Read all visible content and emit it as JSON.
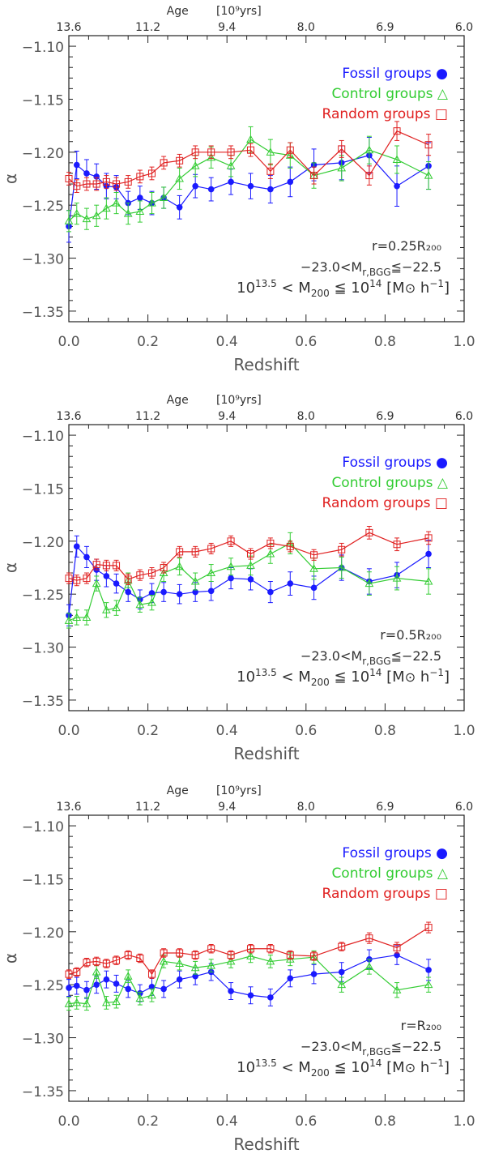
{
  "figure": {
    "x_label": "Redshift",
    "y_label": "α",
    "top_axis_label": "Age",
    "top_axis_unit": "[10⁹yrs]",
    "x_ticks": [
      "0.0",
      "0.2",
      "0.4",
      "0.6",
      "0.8",
      "1.0"
    ],
    "y_ticks": [
      "−1.10",
      "−1.15",
      "−1.20",
      "−1.25",
      "−1.30",
      "−1.35"
    ],
    "top_ticks": [
      "13.6",
      "11.2",
      "9.4",
      "8.0",
      "6.9",
      "6.0"
    ],
    "colors": {
      "fossil": "#1a1aff",
      "control": "#33cc33",
      "random": "#e02020",
      "axis": "#222222"
    }
  },
  "chart_data": [
    {
      "type": "line",
      "panel_label": "r=0.25R₂₀₀",
      "mag_text": "−23.0<M",
      "mag_sub": "r,BGG",
      "mag_tail": "≦−22.5",
      "mass_text": "10^13.5 < M200 ≦ 10^14 [M⊙ h−1]",
      "xlim": [
        0.0,
        1.0
      ],
      "ylim": [
        -1.36,
        -1.09
      ],
      "series": [
        {
          "name": "Fossil groups",
          "key": "fossil",
          "symbol": "●",
          "x": [
            0.0,
            0.02,
            0.045,
            0.07,
            0.095,
            0.12,
            0.15,
            0.18,
            0.21,
            0.24,
            0.28,
            0.32,
            0.36,
            0.41,
            0.46,
            0.51,
            0.56,
            0.62,
            0.69,
            0.76,
            0.83,
            0.91
          ],
          "y": [
            -1.27,
            -1.212,
            -1.22,
            -1.223,
            -1.232,
            -1.233,
            -1.248,
            -1.243,
            -1.248,
            -1.243,
            -1.252,
            -1.232,
            -1.235,
            -1.228,
            -1.232,
            -1.235,
            -1.228,
            -1.212,
            -1.21,
            -1.203,
            -1.232,
            -1.213
          ],
          "err": [
            0.015,
            0.013,
            0.013,
            0.012,
            0.012,
            0.011,
            0.011,
            0.011,
            0.011,
            0.01,
            0.011,
            0.011,
            0.011,
            0.012,
            0.012,
            0.013,
            0.014,
            0.015,
            0.016,
            0.017,
            0.019,
            0.022
          ]
        },
        {
          "name": "Control groups",
          "key": "control",
          "symbol": "△",
          "x": [
            0.0,
            0.02,
            0.045,
            0.07,
            0.095,
            0.12,
            0.15,
            0.18,
            0.21,
            0.24,
            0.28,
            0.32,
            0.36,
            0.41,
            0.46,
            0.51,
            0.56,
            0.62,
            0.69,
            0.76,
            0.83,
            0.91
          ],
          "y": [
            -1.265,
            -1.258,
            -1.263,
            -1.26,
            -1.253,
            -1.248,
            -1.258,
            -1.256,
            -1.248,
            -1.243,
            -1.225,
            -1.213,
            -1.205,
            -1.213,
            -1.188,
            -1.2,
            -1.203,
            -1.222,
            -1.215,
            -1.198,
            -1.207,
            -1.222
          ],
          "err": [
            0.01,
            0.01,
            0.01,
            0.01,
            0.01,
            0.01,
            0.01,
            0.01,
            0.01,
            0.01,
            0.01,
            0.01,
            0.01,
            0.01,
            0.012,
            0.012,
            0.012,
            0.012,
            0.012,
            0.013,
            0.013,
            0.013
          ]
        },
        {
          "name": "Random groups",
          "key": "random",
          "symbol": "□",
          "x": [
            0.0,
            0.02,
            0.045,
            0.07,
            0.095,
            0.12,
            0.15,
            0.18,
            0.21,
            0.24,
            0.28,
            0.32,
            0.36,
            0.41,
            0.46,
            0.51,
            0.56,
            0.62,
            0.69,
            0.76,
            0.83,
            0.91
          ],
          "y": [
            -1.225,
            -1.232,
            -1.23,
            -1.23,
            -1.228,
            -1.23,
            -1.228,
            -1.223,
            -1.22,
            -1.21,
            -1.208,
            -1.2,
            -1.2,
            -1.2,
            -1.198,
            -1.218,
            -1.198,
            -1.222,
            -1.197,
            -1.222,
            -1.18,
            -1.193
          ],
          "err": [
            0.006,
            0.006,
            0.006,
            0.006,
            0.006,
            0.006,
            0.006,
            0.006,
            0.006,
            0.006,
            0.006,
            0.006,
            0.006,
            0.006,
            0.006,
            0.007,
            0.007,
            0.008,
            0.008,
            0.009,
            0.009,
            0.01
          ]
        }
      ]
    },
    {
      "type": "line",
      "panel_label": "r=0.5R₂₀₀",
      "mag_text": "−23.0<M",
      "mag_sub": "r,BGG",
      "mag_tail": "≦−22.5",
      "mass_text": "10^13.5 < M200 ≦ 10^14 [M⊙ h−1]",
      "xlim": [
        0.0,
        1.0
      ],
      "ylim": [
        -1.36,
        -1.09
      ],
      "series": [
        {
          "name": "Fossil groups",
          "key": "fossil",
          "symbol": "●",
          "x": [
            0.0,
            0.02,
            0.045,
            0.07,
            0.095,
            0.12,
            0.15,
            0.18,
            0.21,
            0.24,
            0.28,
            0.32,
            0.36,
            0.41,
            0.46,
            0.51,
            0.56,
            0.62,
            0.69,
            0.76,
            0.83,
            0.91
          ],
          "y": [
            -1.27,
            -1.205,
            -1.215,
            -1.227,
            -1.233,
            -1.24,
            -1.248,
            -1.255,
            -1.249,
            -1.248,
            -1.25,
            -1.248,
            -1.247,
            -1.235,
            -1.236,
            -1.248,
            -1.24,
            -1.244,
            -1.225,
            -1.238,
            -1.232,
            -1.212
          ],
          "err": [
            0.01,
            0.01,
            0.01,
            0.01,
            0.01,
            0.009,
            0.009,
            0.009,
            0.009,
            0.009,
            0.009,
            0.009,
            0.009,
            0.01,
            0.01,
            0.01,
            0.011,
            0.011,
            0.012,
            0.012,
            0.012,
            0.013
          ]
        },
        {
          "name": "Control groups",
          "key": "control",
          "symbol": "△",
          "x": [
            0.0,
            0.02,
            0.045,
            0.07,
            0.095,
            0.12,
            0.15,
            0.18,
            0.21,
            0.24,
            0.28,
            0.32,
            0.36,
            0.41,
            0.46,
            0.51,
            0.56,
            0.62,
            0.69,
            0.76,
            0.83,
            0.91
          ],
          "y": [
            -1.275,
            -1.272,
            -1.272,
            -1.24,
            -1.265,
            -1.263,
            -1.237,
            -1.26,
            -1.258,
            -1.23,
            -1.224,
            -1.238,
            -1.23,
            -1.224,
            -1.223,
            -1.212,
            -1.202,
            -1.226,
            -1.225,
            -1.24,
            -1.235,
            -1.238
          ],
          "err": [
            0.007,
            0.007,
            0.007,
            0.007,
            0.007,
            0.007,
            0.007,
            0.007,
            0.007,
            0.008,
            0.008,
            0.008,
            0.008,
            0.008,
            0.009,
            0.009,
            0.01,
            0.01,
            0.01,
            0.011,
            0.011,
            0.012
          ]
        },
        {
          "name": "Random groups",
          "key": "random",
          "symbol": "□",
          "x": [
            0.0,
            0.02,
            0.045,
            0.07,
            0.095,
            0.12,
            0.15,
            0.18,
            0.21,
            0.24,
            0.28,
            0.32,
            0.36,
            0.41,
            0.46,
            0.51,
            0.56,
            0.62,
            0.69,
            0.76,
            0.83,
            0.91
          ],
          "y": [
            -1.235,
            -1.237,
            -1.235,
            -1.222,
            -1.223,
            -1.223,
            -1.236,
            -1.232,
            -1.23,
            -1.225,
            -1.21,
            -1.21,
            -1.207,
            -1.2,
            -1.212,
            -1.202,
            -1.205,
            -1.213,
            -1.208,
            -1.192,
            -1.203,
            -1.197
          ],
          "err": [
            0.005,
            0.005,
            0.005,
            0.005,
            0.005,
            0.005,
            0.005,
            0.005,
            0.005,
            0.005,
            0.005,
            0.005,
            0.005,
            0.005,
            0.005,
            0.005,
            0.005,
            0.005,
            0.006,
            0.006,
            0.006,
            0.006
          ]
        }
      ]
    },
    {
      "type": "line",
      "panel_label": "r=R₂₀₀",
      "mag_text": "−23.0<M",
      "mag_sub": "r,BGG",
      "mag_tail": "≦−22.5",
      "mass_text": "10^13.5 < M200 ≦ 10^14 [M⊙ h−1]",
      "xlim": [
        0.0,
        1.0
      ],
      "ylim": [
        -1.36,
        -1.09
      ],
      "series": [
        {
          "name": "Fossil groups",
          "key": "fossil",
          "symbol": "●",
          "x": [
            0.0,
            0.02,
            0.045,
            0.07,
            0.095,
            0.12,
            0.15,
            0.18,
            0.21,
            0.24,
            0.28,
            0.32,
            0.36,
            0.41,
            0.46,
            0.51,
            0.56,
            0.62,
            0.69,
            0.76,
            0.83,
            0.91
          ],
          "y": [
            -1.253,
            -1.251,
            -1.255,
            -1.25,
            -1.245,
            -1.249,
            -1.254,
            -1.258,
            -1.252,
            -1.254,
            -1.245,
            -1.242,
            -1.238,
            -1.256,
            -1.26,
            -1.262,
            -1.244,
            -1.24,
            -1.238,
            -1.226,
            -1.222,
            -1.236
          ],
          "err": [
            0.008,
            0.008,
            0.008,
            0.008,
            0.008,
            0.008,
            0.008,
            0.008,
            0.008,
            0.008,
            0.008,
            0.008,
            0.008,
            0.008,
            0.008,
            0.008,
            0.008,
            0.009,
            0.009,
            0.009,
            0.009,
            0.01
          ]
        },
        {
          "name": "Control groups",
          "key": "control",
          "symbol": "△",
          "x": [
            0.0,
            0.02,
            0.045,
            0.07,
            0.095,
            0.12,
            0.15,
            0.18,
            0.21,
            0.24,
            0.28,
            0.32,
            0.36,
            0.41,
            0.46,
            0.51,
            0.56,
            0.62,
            0.69,
            0.76,
            0.83,
            0.91
          ],
          "y": [
            -1.268,
            -1.267,
            -1.268,
            -1.238,
            -1.267,
            -1.266,
            -1.242,
            -1.263,
            -1.26,
            -1.228,
            -1.23,
            -1.234,
            -1.232,
            -1.228,
            -1.223,
            -1.228,
            -1.226,
            -1.224,
            -1.25,
            -1.233,
            -1.255,
            -1.25
          ],
          "err": [
            0.006,
            0.006,
            0.006,
            0.006,
            0.006,
            0.006,
            0.006,
            0.006,
            0.006,
            0.006,
            0.006,
            0.006,
            0.006,
            0.006,
            0.006,
            0.006,
            0.006,
            0.006,
            0.007,
            0.007,
            0.007,
            0.007
          ]
        },
        {
          "name": "Random groups",
          "key": "random",
          "symbol": "□",
          "x": [
            0.0,
            0.02,
            0.045,
            0.07,
            0.095,
            0.12,
            0.15,
            0.18,
            0.21,
            0.24,
            0.28,
            0.32,
            0.36,
            0.41,
            0.46,
            0.51,
            0.56,
            0.62,
            0.69,
            0.76,
            0.83,
            0.91
          ],
          "y": [
            -1.24,
            -1.238,
            -1.229,
            -1.228,
            -1.23,
            -1.227,
            -1.222,
            -1.225,
            -1.24,
            -1.22,
            -1.22,
            -1.222,
            -1.216,
            -1.222,
            -1.216,
            -1.216,
            -1.222,
            -1.223,
            -1.214,
            -1.206,
            -1.215,
            -1.196
          ],
          "err": [
            0.004,
            0.004,
            0.004,
            0.004,
            0.004,
            0.004,
            0.004,
            0.004,
            0.004,
            0.004,
            0.004,
            0.004,
            0.004,
            0.004,
            0.004,
            0.004,
            0.004,
            0.004,
            0.004,
            0.005,
            0.005,
            0.005
          ]
        }
      ]
    }
  ]
}
